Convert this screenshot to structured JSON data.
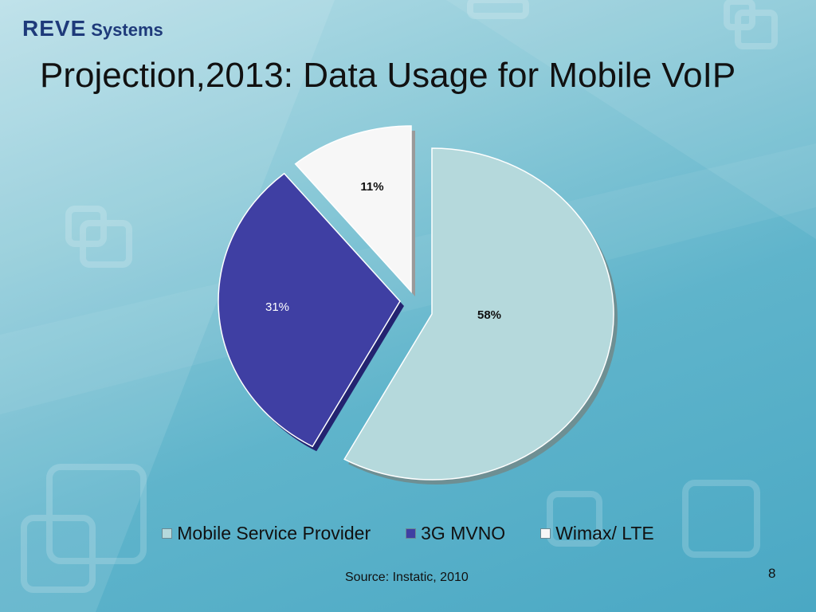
{
  "slide": {
    "logo_brand": "REVE",
    "logo_sub": "Systems",
    "title": "Projection,2013: Data Usage for Mobile VoIP",
    "source": "Source: Instatic, 2010",
    "page_number": "8"
  },
  "colors": {
    "mobile_service_provider": "#b5d9dc",
    "mvno_3g": "#3f3fa3",
    "wimax_lte": "#f7f7f7"
  },
  "chart_data": {
    "type": "pie",
    "title": "",
    "categories": [
      "Mobile Service Provider",
      "3G MVNO",
      "Wimax/ LTE"
    ],
    "values": [
      58,
      31,
      11
    ],
    "data_labels": [
      "58%",
      "31%",
      "11%"
    ],
    "exploded": true,
    "legend_position": "bottom"
  }
}
